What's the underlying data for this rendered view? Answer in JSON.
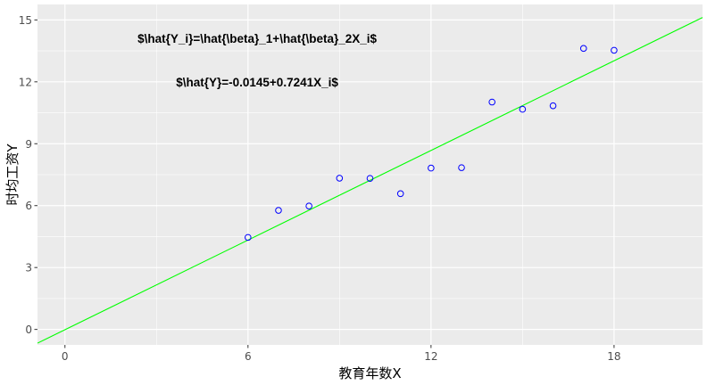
{
  "chart_data": {
    "type": "scatter",
    "xlabel": "教育年数X",
    "ylabel": "时均工资Y",
    "xlim": [
      -0.9,
      20.9
    ],
    "ylim": [
      -0.75,
      15.75
    ],
    "x_ticks": [
      0,
      6,
      12,
      18
    ],
    "y_ticks": [
      0,
      3,
      6,
      9,
      12,
      15
    ],
    "grid": true,
    "points": [
      {
        "x": 6,
        "y": 4.46
      },
      {
        "x": 7,
        "y": 5.77
      },
      {
        "x": 8,
        "y": 5.98
      },
      {
        "x": 9,
        "y": 7.33
      },
      {
        "x": 10,
        "y": 7.32
      },
      {
        "x": 11,
        "y": 6.58
      },
      {
        "x": 12,
        "y": 7.82
      },
      {
        "x": 13,
        "y": 7.84
      },
      {
        "x": 14,
        "y": 11.02
      },
      {
        "x": 15,
        "y": 10.67
      },
      {
        "x": 16,
        "y": 10.84
      },
      {
        "x": 17,
        "y": 13.62
      },
      {
        "x": 18,
        "y": 13.53
      }
    ],
    "fit_line": {
      "intercept": -0.0145,
      "slope": 0.7241,
      "color": "#00ff00"
    },
    "point_color": "#0000ff",
    "panel_background": "#ebebeb",
    "annotations": [
      {
        "text": "$\\hat{Y_i}=\\hat{\\beta}_1+\\hat{\\beta}_2X_i$",
        "x": 6.3,
        "y": 14.1
      },
      {
        "text": "$\\hat{Y}=-0.0145+0.7241X_i$",
        "x": 6.3,
        "y": 12.0
      }
    ]
  }
}
